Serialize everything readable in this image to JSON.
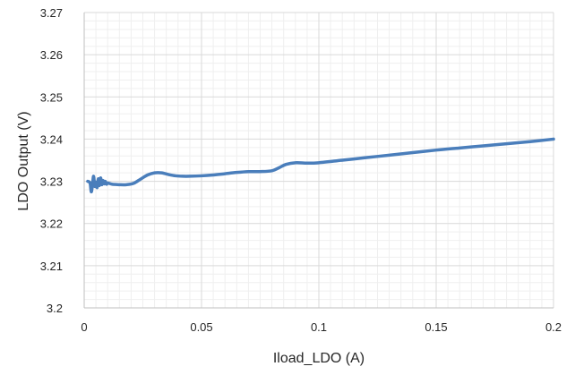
{
  "chart_data": {
    "type": "line",
    "title": "",
    "xlabel": "Iload_LDO (A)",
    "ylabel": "LDO Output (V)",
    "xlim": [
      0,
      0.2
    ],
    "ylim": [
      3.2,
      3.27
    ],
    "x_ticks": [
      0,
      0.05,
      0.1,
      0.15,
      0.2
    ],
    "x_tick_labels": [
      "0",
      "0.05",
      "0.1",
      "0.15",
      "0.2"
    ],
    "y_ticks": [
      3.2,
      3.21,
      3.22,
      3.23,
      3.24,
      3.25,
      3.26,
      3.27
    ],
    "y_tick_labels": [
      "3.2",
      "3.21",
      "3.22",
      "3.23",
      "3.24",
      "3.25",
      "3.26",
      "3.27"
    ],
    "grid": "major and minor",
    "legend": "none",
    "colors": {
      "series": "#4a7ebb",
      "major_grid": "#d9d9d9",
      "minor_grid": "#efefef",
      "axis": "#bfbfbf"
    },
    "series": [
      {
        "x": [
          0.0015,
          0.0025,
          0.003,
          0.0035,
          0.004,
          0.0045,
          0.005,
          0.0055,
          0.006,
          0.0065,
          0.007,
          0.0075,
          0.008,
          0.0085,
          0.009,
          0.0095,
          0.01,
          0.012,
          0.015,
          0.018,
          0.021,
          0.024,
          0.027,
          0.03,
          0.033,
          0.036,
          0.039,
          0.042,
          0.045,
          0.05,
          0.055,
          0.06,
          0.065,
          0.07,
          0.075,
          0.08,
          0.083,
          0.086,
          0.09,
          0.095,
          0.1,
          0.11,
          0.12,
          0.13,
          0.14,
          0.15,
          0.16,
          0.17,
          0.18,
          0.19,
          0.2
        ],
        "y": [
          3.23,
          3.2296,
          3.2275,
          3.229,
          3.2312,
          3.2288,
          3.2298,
          3.2285,
          3.2306,
          3.229,
          3.2308,
          3.2292,
          3.2302,
          3.2294,
          3.23,
          3.2293,
          3.2296,
          3.2293,
          3.2292,
          3.2292,
          3.2295,
          3.2305,
          3.2315,
          3.232,
          3.232,
          3.2316,
          3.2313,
          3.2312,
          3.2312,
          3.2313,
          3.2315,
          3.2318,
          3.2321,
          3.2323,
          3.2323,
          3.2325,
          3.2332,
          3.234,
          3.2344,
          3.2343,
          3.2344,
          3.235,
          3.2356,
          3.2362,
          3.2368,
          3.2374,
          3.2379,
          3.2384,
          3.2389,
          3.2394,
          3.24
        ]
      }
    ]
  }
}
